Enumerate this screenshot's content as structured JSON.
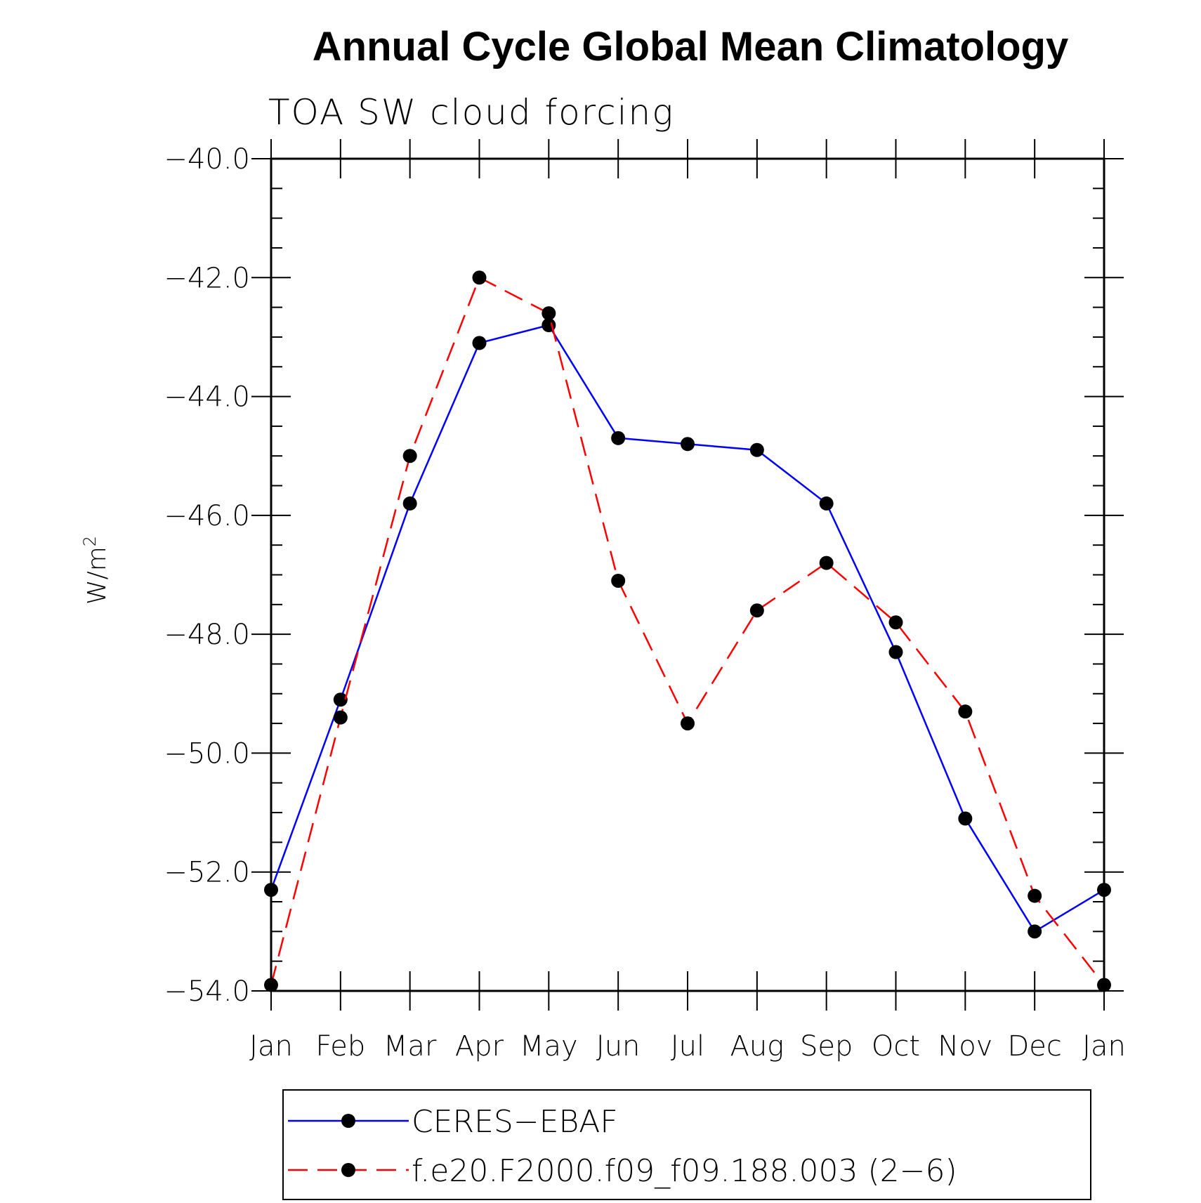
{
  "chart_data": {
    "type": "line",
    "title": "Annual Cycle Global Mean Climatology",
    "subtitle": "TOA SW cloud forcing",
    "xlabel": "",
    "ylabel": "W/m",
    "ylabel_superscript": "2",
    "categories": [
      "Jan",
      "Feb",
      "Mar",
      "Apr",
      "May",
      "Jun",
      "Jul",
      "Aug",
      "Sep",
      "Oct",
      "Nov",
      "Dec",
      "Jan"
    ],
    "ylim": [
      -54.0,
      -40.0
    ],
    "yticks": [
      -40.0,
      -42.0,
      -44.0,
      -46.0,
      -48.0,
      -50.0,
      -52.0,
      -54.0
    ],
    "ytick_labels": [
      "−40.0",
      "−42.0",
      "−44.0",
      "−46.0",
      "−48.0",
      "−50.0",
      "−52.0",
      "−54.0"
    ],
    "series": [
      {
        "name": "CERES−EBAF",
        "color": "#0000ff",
        "dash": "solid",
        "values": [
          -52.3,
          -49.1,
          -45.8,
          -43.1,
          -42.8,
          -44.7,
          -44.8,
          -44.9,
          -45.8,
          -48.3,
          -51.1,
          -53.0,
          -52.3
        ]
      },
      {
        "name": "f.e20.F2000.f09_f09.188.003 (2−6)",
        "color": "#ff0000",
        "dash": "dashed",
        "values": [
          -53.9,
          -49.4,
          -45.0,
          -42.0,
          -42.6,
          -47.1,
          -49.5,
          -47.6,
          -46.8,
          -47.8,
          -49.3,
          -52.4,
          -53.9
        ]
      }
    ],
    "legend_position": "bottom"
  }
}
